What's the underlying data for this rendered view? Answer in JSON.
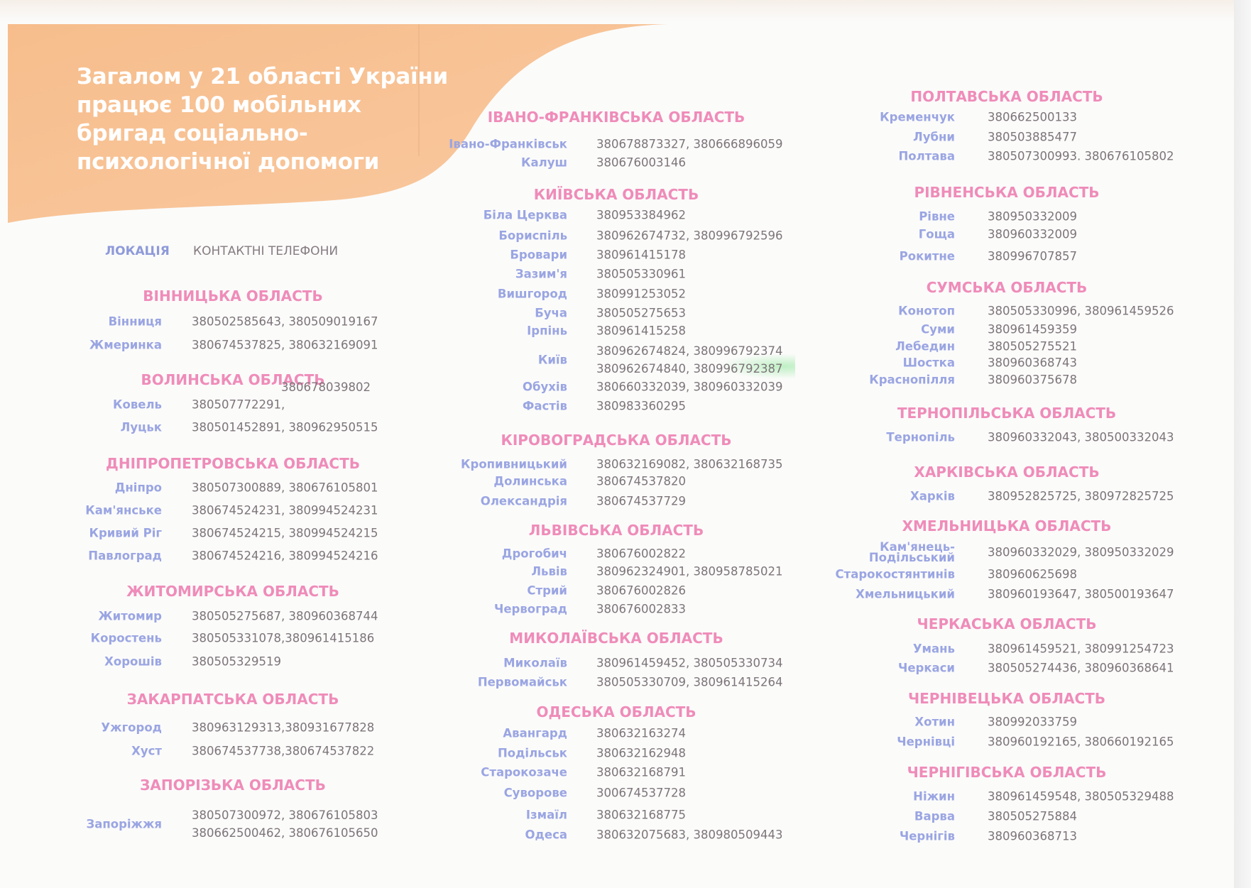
{
  "banner": {
    "title": "Загалом у 21 області України\nпрацює 100 мобільних\nбригад соціально-\nпсихологічної допомоги",
    "color": "#f6c193"
  },
  "columns_header": {
    "location": "ЛОКАЦІЯ",
    "phones": "КОНТАКТНІ ТЕЛЕФОНИ"
  },
  "colors": {
    "region": "#ef8cb9",
    "city": "#9aa5e2",
    "phone": "#7d7479"
  },
  "columns": [
    {
      "regions": [
        {
          "name": "ВІННИЦЬКА ОБЛАСТЬ",
          "rows": [
            {
              "city": "Вінниця",
              "phones": [
                "380502585643, 380509019167"
              ]
            },
            {
              "city": "Жмеринка",
              "phones": [
                "380674537825, 380632169091"
              ]
            }
          ]
        },
        {
          "name": "ВОЛИНСЬКА ОБЛАСТЬ",
          "rows": [
            {
              "city": "Ковель",
              "phones": [
                "380507772291,"
              ],
              "overflow_phone": "380678039802"
            },
            {
              "city": "Луцьк",
              "phones": [
                "380501452891, 380962950515"
              ]
            }
          ]
        },
        {
          "name": "ДНІПРОПЕТРОВСЬКА ОБЛАСТЬ",
          "rows": [
            {
              "city": "Дніпро",
              "phones": [
                "380507300889, 380676105801"
              ]
            },
            {
              "city": "Кам'янське",
              "phones": [
                "380674524231, 380994524231"
              ]
            },
            {
              "city": "Кривий Ріг",
              "phones": [
                "380674524215, 380994524215"
              ]
            },
            {
              "city": "Павлоград",
              "phones": [
                "380674524216, 380994524216"
              ]
            }
          ]
        },
        {
          "name": "ЖИТОМИРСЬКА ОБЛАСТЬ",
          "rows": [
            {
              "city": "Житомир",
              "phones": [
                "380505275687, 380960368744"
              ]
            },
            {
              "city": "Коростень",
              "phones": [
                "380505331078,380961415186"
              ]
            },
            {
              "city": "Хорошів",
              "phones": [
                "380505329519"
              ]
            }
          ]
        },
        {
          "name": "ЗАКАРПАТСЬКА ОБЛАСТЬ",
          "rows": [
            {
              "city": "Ужгород",
              "phones": [
                "380963129313,380931677828"
              ]
            },
            {
              "city": "Хуст",
              "phones": [
                "380674537738,380674537822"
              ]
            }
          ]
        },
        {
          "name": "ЗАПОРІЗЬКА ОБЛАСТЬ",
          "rows": [
            {
              "city": "Запоріжжя",
              "phones": [
                "380507300972, 380676105803",
                "380662500462, 380676105650"
              ]
            }
          ]
        }
      ]
    },
    {
      "regions": [
        {
          "name": "ІВАНО-ФРАНКІВСЬКА ОБЛАСТЬ",
          "rows": [
            {
              "city": "Івано-Франківськ",
              "phones": [
                "380678873327, 380666896059"
              ]
            },
            {
              "city": "Калуш",
              "phones": [
                "380676003146"
              ]
            }
          ]
        },
        {
          "name": "КИЇВСЬКА ОБЛАСТЬ",
          "rows": [
            {
              "city": "Біла Церква",
              "phones": [
                "380953384962"
              ]
            },
            {
              "city": "Бориспіль",
              "phones": [
                "380962674732, 380996792596"
              ]
            },
            {
              "city": "Бровари",
              "phones": [
                "380961415178"
              ]
            },
            {
              "city": "Зазим'я",
              "phones": [
                "380505330961"
              ]
            },
            {
              "city": "Вишгород",
              "phones": [
                "380991253052"
              ]
            },
            {
              "city": "Буча",
              "phones": [
                "380505275653"
              ]
            },
            {
              "city": "Ірпінь",
              "phones": [
                "380961415258"
              ]
            },
            {
              "city": "Київ",
              "phones": [
                "380962674824, 380996792374",
                "380962674840, 380996792387"
              ]
            },
            {
              "city": "Обухів",
              "phones": [
                "380660332039, 380960332039"
              ]
            },
            {
              "city": "Фастів",
              "phones": [
                "380983360295"
              ]
            }
          ]
        },
        {
          "name": "КІРОВОГРАДСЬКА ОБЛАСТЬ",
          "rows": [
            {
              "city": "Кропивницький",
              "phones": [
                "380632169082, 380632168735"
              ]
            },
            {
              "city": "Долинська",
              "phones": [
                "380674537820"
              ]
            },
            {
              "city": "Олександрія",
              "phones": [
                "380674537729"
              ]
            }
          ]
        },
        {
          "name": "ЛЬВІВСЬКА ОБЛАСТЬ",
          "rows": [
            {
              "city": "Дрогобич",
              "phones": [
                "380676002822"
              ]
            },
            {
              "city": "Львів",
              "phones": [
                "380962324901, 380958785021"
              ]
            },
            {
              "city": "Стрий",
              "phones": [
                "380676002826"
              ]
            },
            {
              "city": "Червоград",
              "phones": [
                "380676002833"
              ]
            }
          ]
        },
        {
          "name": "МИКОЛАЇВСЬКА ОБЛАСТЬ",
          "rows": [
            {
              "city": "Миколаїв",
              "phones": [
                "380961459452, 380505330734"
              ]
            },
            {
              "city": "Первомайськ",
              "phones": [
                "380505330709, 380961415264"
              ]
            }
          ]
        },
        {
          "name": "ОДЕСЬКА ОБЛАСТЬ",
          "rows": [
            {
              "city": "Авангард",
              "phones": [
                "380632163274"
              ]
            },
            {
              "city": "Подільськ",
              "phones": [
                "380632162948"
              ]
            },
            {
              "city": "Старокозаче",
              "phones": [
                "380632168791"
              ]
            },
            {
              "city": "Суворове",
              "phones": [
                "300674537728"
              ]
            },
            {
              "city": "Ізмаїл",
              "phones": [
                "380632168775"
              ]
            },
            {
              "city": "Одеса",
              "phones": [
                "380632075683, 380980509443"
              ]
            }
          ]
        }
      ]
    },
    {
      "regions": [
        {
          "name": "ПОЛТАВСЬКА ОБЛАСТЬ",
          "rows": [
            {
              "city": "Кременчук",
              "phones": [
                "380662500133"
              ]
            },
            {
              "city": "Лубни",
              "phones": [
                "380503885477"
              ]
            },
            {
              "city": "Полтава",
              "phones": [
                "380507300993. 380676105802"
              ]
            }
          ]
        },
        {
          "name": "РІВНЕНСЬКА ОБЛАСТЬ",
          "rows": [
            {
              "city": "Рівне",
              "phones": [
                "380950332009"
              ]
            },
            {
              "city": "Гоща",
              "phones": [
                "380960332009"
              ]
            },
            {
              "city": "Рокитне",
              "phones": [
                "380996707857"
              ]
            }
          ]
        },
        {
          "name": "СУМСЬКА ОБЛАСТЬ",
          "rows": [
            {
              "city": "Конотоп",
              "phones": [
                "380505330996, 380961459526"
              ]
            },
            {
              "city": "Суми",
              "phones": [
                "380961459359"
              ]
            },
            {
              "city": "Лебедин",
              "phones": [
                "380505275521"
              ]
            },
            {
              "city": "Шостка",
              "phones": [
                "380960368743"
              ]
            },
            {
              "city": "Краснопілля",
              "phones": [
                "380960375678"
              ]
            }
          ]
        },
        {
          "name": "ТЕРНОПІЛЬСЬКА ОБЛАСТЬ",
          "rows": [
            {
              "city": "Тернопіль",
              "phones": [
                "380960332043, 380500332043"
              ]
            }
          ]
        },
        {
          "name": "ХАРКІВСЬКА ОБЛАСТЬ",
          "rows": [
            {
              "city": "Харків",
              "phones": [
                "380952825725, 380972825725"
              ]
            }
          ]
        },
        {
          "name": "ХМЕЛЬНИЦЬКА ОБЛАСТЬ",
          "rows": [
            {
              "city": "Кам'янець-\nПодільський",
              "phones": [
                "380960332029, 380950332029"
              ]
            },
            {
              "city": "Старокостянтинів",
              "phones": [
                "380960625698"
              ]
            },
            {
              "city": "Хмельницький",
              "phones": [
                "380960193647, 380500193647"
              ]
            }
          ]
        },
        {
          "name": "ЧЕРКАСЬКА ОБЛАСТЬ",
          "rows": [
            {
              "city": "Умань",
              "phones": [
                "380961459521, 380991254723"
              ]
            },
            {
              "city": "Черкаси",
              "phones": [
                "380505274436, 380960368641"
              ]
            }
          ]
        },
        {
          "name": "ЧЕРНІВЕЦЬКА ОБЛАСТЬ",
          "rows": [
            {
              "city": "Хотин",
              "phones": [
                "380992033759"
              ]
            },
            {
              "city": "Чернівці",
              "phones": [
                "380960192165, 380660192165"
              ]
            }
          ]
        },
        {
          "name": "ЧЕРНІГІВСЬКА ОБЛАСТЬ",
          "rows": [
            {
              "city": "Ніжин",
              "phones": [
                "380961459548, 380505329488"
              ]
            },
            {
              "city": "Варва",
              "phones": [
                "380505275884"
              ]
            },
            {
              "city": "Чернігів",
              "phones": [
                "380960368713"
              ]
            }
          ]
        }
      ]
    }
  ]
}
